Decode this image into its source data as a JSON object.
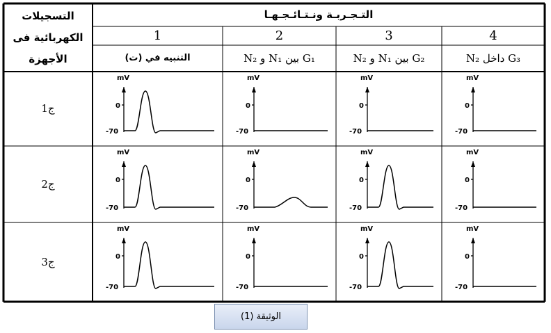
{
  "table": {
    "side_header": [
      "التسجيلات",
      "الكهربائية فى",
      "الأجهزة"
    ],
    "title": "التـجـربـة ونـتـائـجـهـا",
    "columns": [
      {
        "number": "1",
        "label": "التنبيه في (ت)"
      },
      {
        "number": "2",
        "label": "G₁ بين N₁ و N₂"
      },
      {
        "number": "3",
        "label": "G₂ بين N₁ و N₂"
      },
      {
        "number": "4",
        "label": "G₃ داخل N₂"
      }
    ],
    "rows": [
      "ج1",
      "ج2",
      "ج3"
    ]
  },
  "graph_labels": {
    "unit": "mV",
    "zero": "0",
    "rest": "-70"
  },
  "caption": "الوثيقة (1)"
}
